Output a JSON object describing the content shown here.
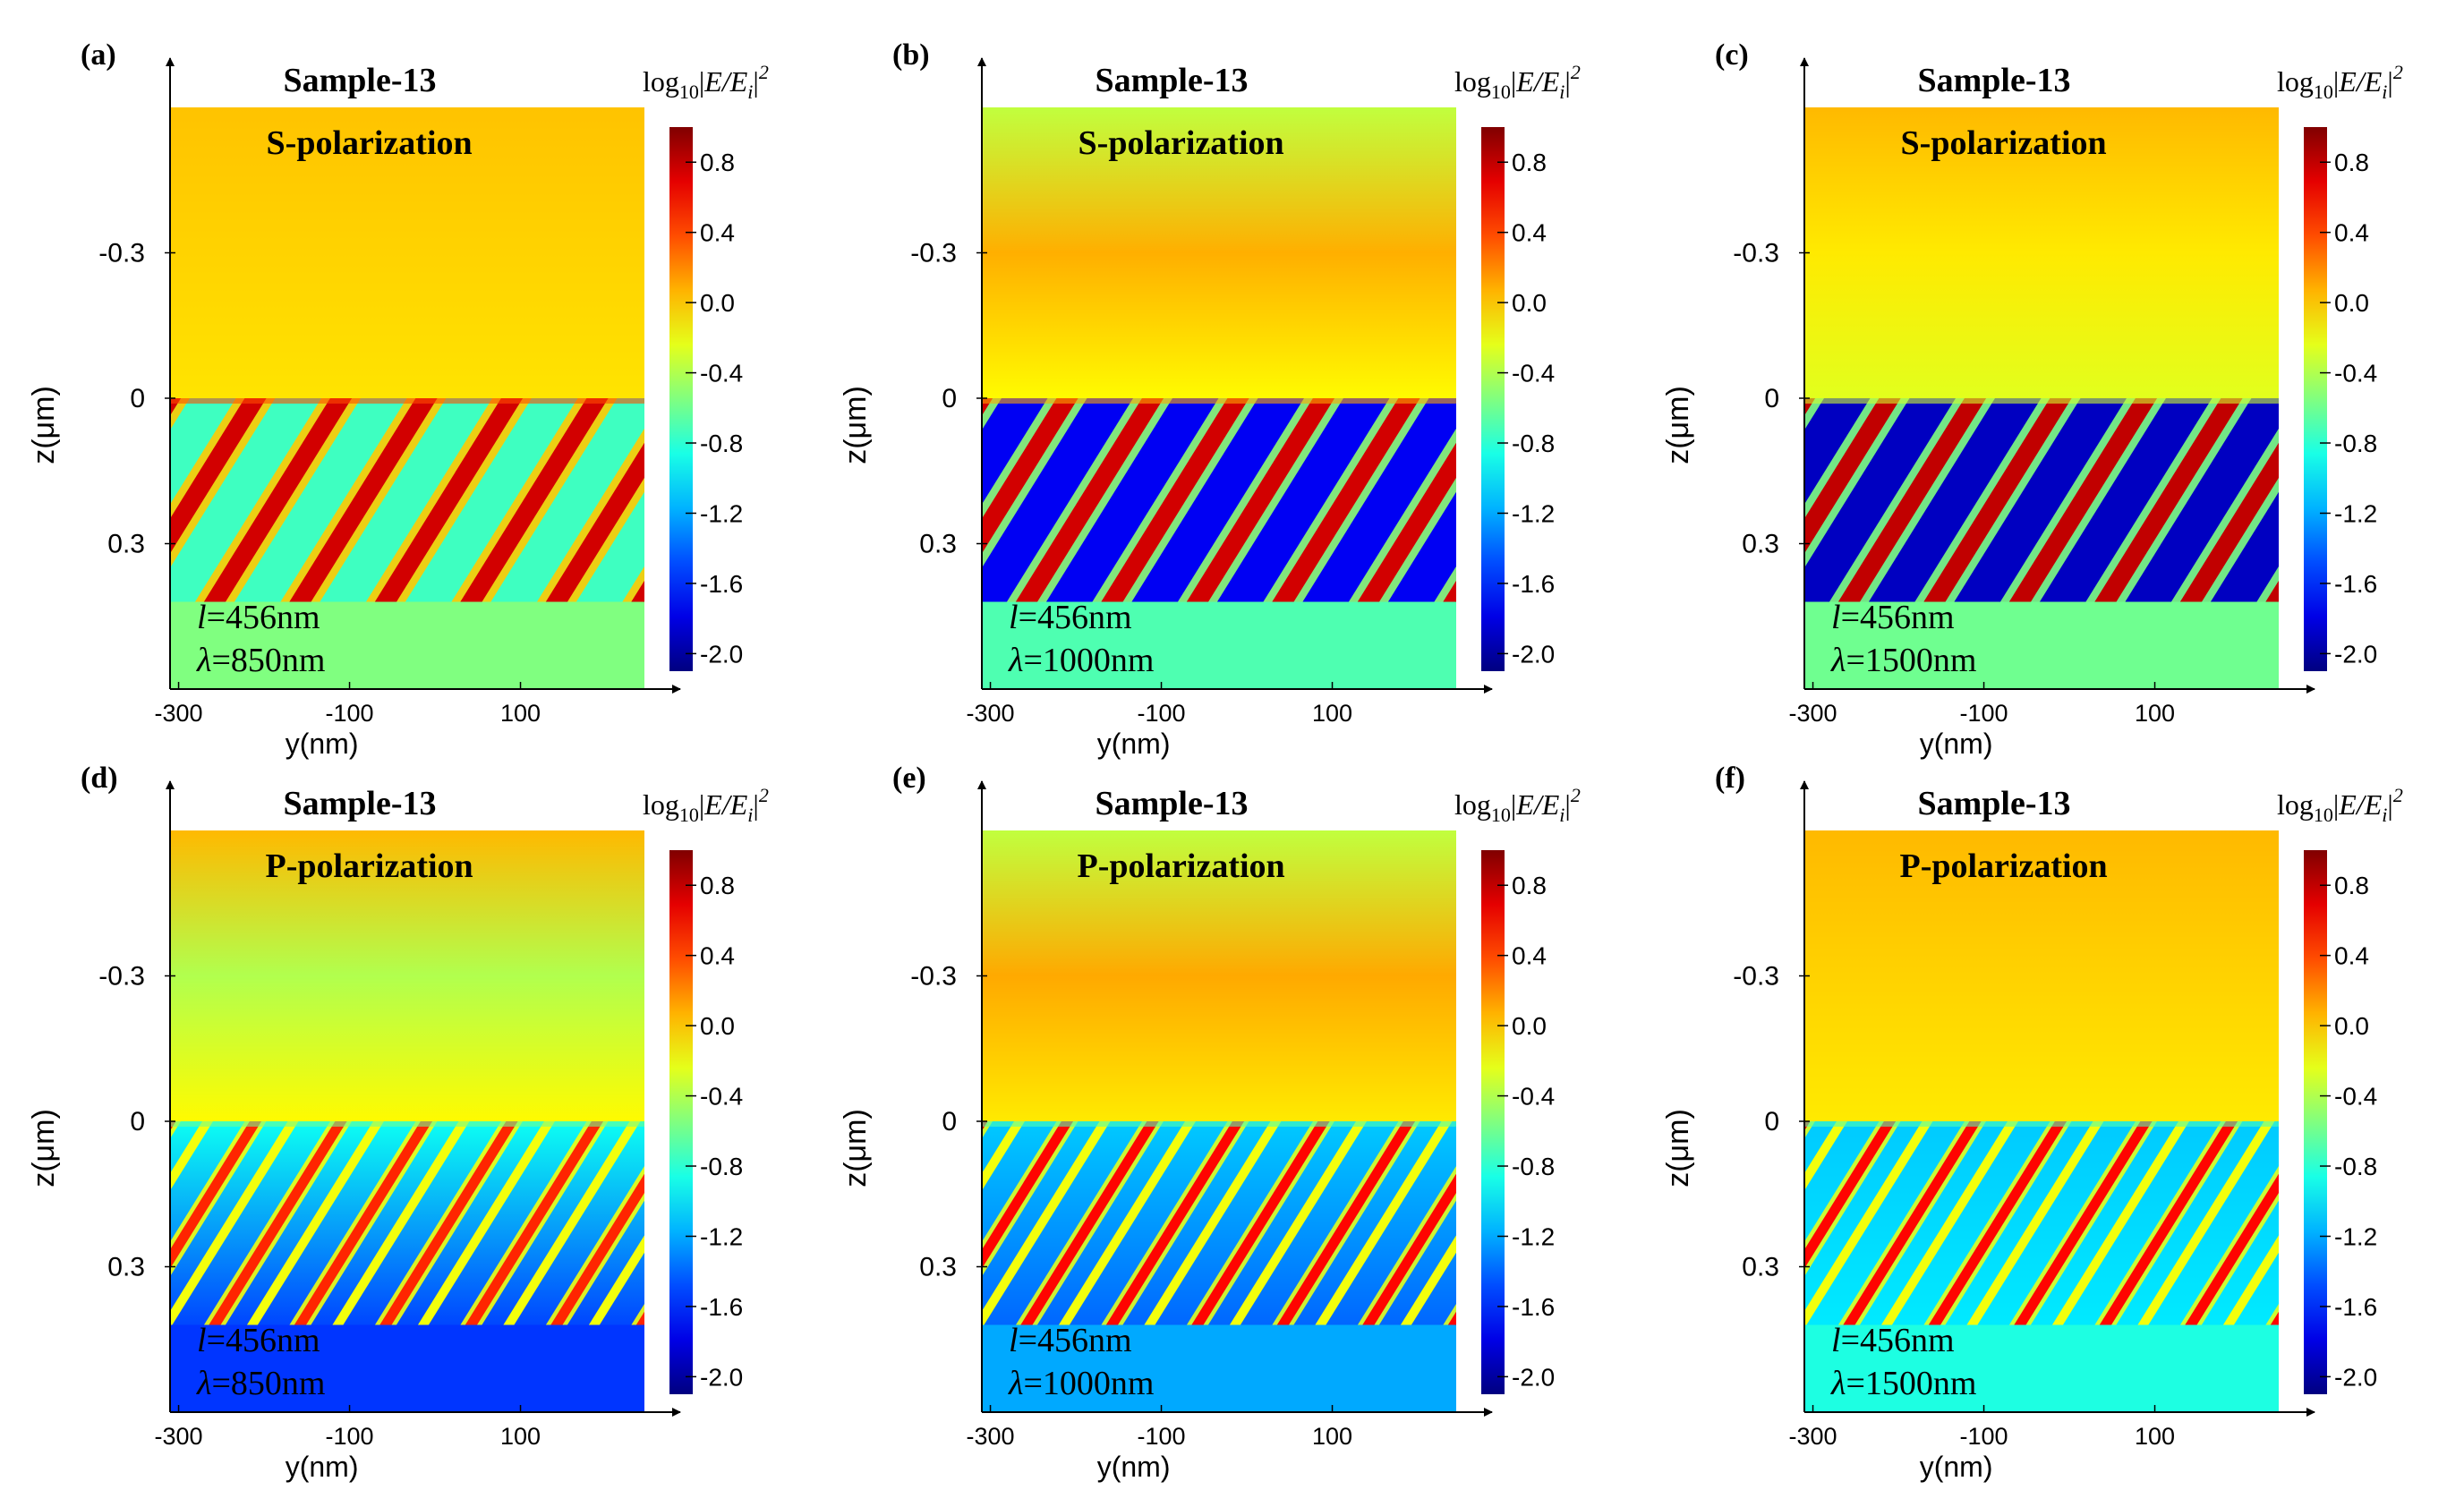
{
  "figure": {
    "z_axis_label": "z(μm)",
    "y_axis_label": "y(nm)",
    "colorbar_title": {
      "prefix": "log",
      "sub10": "10",
      "bar_open": "|",
      "E": "E",
      "slash": "/",
      "Ei": "E",
      "sub_i": "i",
      "bar_close": "|",
      "sup2": "2"
    },
    "colormap": "jet",
    "colors": {
      "axis": "#000000",
      "background": "#ffffff"
    }
  },
  "chart_data": [
    {
      "type": "heatmap",
      "label": "(a)",
      "title": "Sample-13",
      "subtitle": "S-polarization",
      "pol": "S",
      "annot": {
        "l_var": "l",
        "l_val": "=456nm",
        "lam_var": "λ",
        "lam_val": "=850nm"
      },
      "xlabel": "y(nm)",
      "ylabel": "z(μm)",
      "x_ticks": [
        "-300",
        "-100",
        "100"
      ],
      "x_tick_values": [
        -300,
        -100,
        100
      ],
      "xlim": [
        -310,
        245
      ],
      "y_ticks": [
        "-0.3",
        "0",
        "0.3"
      ],
      "y_tick_values": [
        -0.3,
        0,
        0.3
      ],
      "ylim": [
        -0.6,
        0.6
      ],
      "field": {
        "above_top": 0.02,
        "above_bottom": -0.08,
        "grating_top": 0.38,
        "grating_peak": 0.75,
        "grating_bg": -0.75,
        "below": -0.55,
        "period_nm": 100
      },
      "colorbar": {
        "ticks": [
          "0.8",
          "0.4",
          "0.0",
          "-0.4",
          "-0.8",
          "-1.2",
          "-1.6",
          "-2.0"
        ],
        "tick_values": [
          0.8,
          0.4,
          0.0,
          -0.4,
          -0.8,
          -1.2,
          -1.6,
          -2.0
        ],
        "range": [
          -2.1,
          1.0
        ]
      }
    },
    {
      "type": "heatmap",
      "label": "(b)",
      "title": "Sample-13",
      "subtitle": "S-polarization",
      "pol": "S",
      "annot": {
        "l_var": "l",
        "l_val": "=456nm",
        "lam_var": "λ",
        "lam_val": "=1000nm"
      },
      "xlabel": "y(nm)",
      "ylabel": "z(μm)",
      "x_ticks": [
        "-300",
        "-100",
        "100"
      ],
      "x_tick_values": [
        -300,
        -100,
        100
      ],
      "xlim": [
        -310,
        245
      ],
      "y_ticks": [
        "-0.3",
        "0",
        "0.3"
      ],
      "y_tick_values": [
        -0.3,
        0,
        0.3
      ],
      "ylim": [
        -0.6,
        0.6
      ],
      "field": {
        "above_top": -0.35,
        "above_bottom": -0.15,
        "above_mid": 0.08,
        "grating_top": 0.1,
        "grating_peak": 0.75,
        "grating_bg": -1.75,
        "below": -0.7,
        "period_nm": 100
      },
      "colorbar": {
        "ticks": [
          "0.8",
          "0.4",
          "0.0",
          "-0.4",
          "-0.8",
          "-1.2",
          "-1.6",
          "-2.0"
        ],
        "tick_values": [
          0.8,
          0.4,
          0.0,
          -0.4,
          -0.8,
          -1.2,
          -1.6,
          -2.0
        ],
        "range": [
          -2.1,
          1.0
        ]
      }
    },
    {
      "type": "heatmap",
      "label": "(c)",
      "title": "Sample-13",
      "subtitle": "S-polarization",
      "pol": "S",
      "annot": {
        "l_var": "l",
        "l_val": "=456nm",
        "lam_var": "λ",
        "lam_val": "=1500nm"
      },
      "xlabel": "y(nm)",
      "ylabel": "z(μm)",
      "x_ticks": [
        "-300",
        "-100",
        "100"
      ],
      "x_tick_values": [
        -300,
        -100,
        100
      ],
      "xlim": [
        -310,
        245
      ],
      "y_ticks": [
        "-0.3",
        "0",
        "0.3"
      ],
      "y_tick_values": [
        -0.3,
        0,
        0.3
      ],
      "ylim": [
        -0.6,
        0.6
      ],
      "field": {
        "above_top": 0.05,
        "above_bottom": -0.25,
        "grating_top": -0.3,
        "grating_peak": 0.8,
        "grating_bg": -1.9,
        "below": -0.6,
        "period_nm": 100
      },
      "colorbar": {
        "ticks": [
          "0.8",
          "0.4",
          "0.0",
          "-0.4",
          "-0.8",
          "-1.2",
          "-1.6",
          "-2.0"
        ],
        "tick_values": [
          0.8,
          0.4,
          0.0,
          -0.4,
          -0.8,
          -1.2,
          -1.6,
          -2.0
        ],
        "range": [
          -2.1,
          1.0
        ]
      }
    },
    {
      "type": "heatmap",
      "label": "(d)",
      "title": "Sample-13",
      "subtitle": "P-polarization",
      "pol": "P",
      "annot": {
        "l_var": "l",
        "l_val": "=456nm",
        "lam_var": "λ",
        "lam_val": "=850nm"
      },
      "xlabel": "y(nm)",
      "ylabel": "z(μm)",
      "x_ticks": [
        "-300",
        "-100",
        "100"
      ],
      "x_tick_values": [
        -300,
        -100,
        100
      ],
      "xlim": [
        -310,
        245
      ],
      "y_ticks": [
        "-0.3",
        "0",
        "0.3"
      ],
      "y_tick_values": [
        -0.3,
        0,
        0.3
      ],
      "ylim": [
        -0.6,
        0.6
      ],
      "field": {
        "above_top": 0.05,
        "above_bottom": -0.15,
        "above_mid": -0.4,
        "grating_top": -0.6,
        "grating_peak": 0.5,
        "grating_bg": -0.9,
        "grating_bottom_bg": -1.5,
        "below": -1.55,
        "period_nm": 100
      },
      "colorbar": {
        "ticks": [
          "0.8",
          "0.4",
          "0.0",
          "-0.4",
          "-0.8",
          "-1.2",
          "-1.6",
          "-2.0"
        ],
        "tick_values": [
          0.8,
          0.4,
          0.0,
          -0.4,
          -0.8,
          -1.2,
          -1.6,
          -2.0
        ],
        "range": [
          -2.1,
          1.0
        ]
      }
    },
    {
      "type": "heatmap",
      "label": "(e)",
      "title": "Sample-13",
      "subtitle": "P-polarization",
      "pol": "P",
      "annot": {
        "l_var": "l",
        "l_val": "=456nm",
        "lam_var": "λ",
        "lam_val": "=1000nm"
      },
      "xlabel": "y(nm)",
      "ylabel": "z(μm)",
      "x_ticks": [
        "-300",
        "-100",
        "100"
      ],
      "x_tick_values": [
        -300,
        -100,
        100
      ],
      "xlim": [
        -310,
        245
      ],
      "y_ticks": [
        "-0.3",
        "0",
        "0.3"
      ],
      "y_tick_values": [
        -0.3,
        0,
        0.3
      ],
      "ylim": [
        -0.6,
        0.6
      ],
      "field": {
        "above_top": -0.35,
        "above_bottom": -0.1,
        "above_mid": 0.1,
        "grating_top": -0.7,
        "grating_peak": 0.6,
        "grating_bg": -1.1,
        "grating_bottom_bg": -1.4,
        "below": -1.2,
        "period_nm": 100
      },
      "colorbar": {
        "ticks": [
          "0.8",
          "0.4",
          "0.0",
          "-0.4",
          "-0.8",
          "-1.2",
          "-1.6",
          "-2.0"
        ],
        "tick_values": [
          0.8,
          0.4,
          0.0,
          -0.4,
          -0.8,
          -1.2,
          -1.6,
          -2.0
        ],
        "range": [
          -2.1,
          1.0
        ]
      }
    },
    {
      "type": "heatmap",
      "label": "(f)",
      "title": "Sample-13",
      "subtitle": "P-polarization",
      "pol": "P",
      "annot": {
        "l_var": "l",
        "l_val": "=456nm",
        "lam_var": "λ",
        "lam_val": "=1500nm"
      },
      "xlabel": "y(nm)",
      "ylabel": "z(μm)",
      "x_ticks": [
        "-300",
        "-100",
        "100"
      ],
      "x_tick_values": [
        -300,
        -100,
        100
      ],
      "xlim": [
        -310,
        245
      ],
      "y_ticks": [
        "-0.3",
        "0",
        "0.3"
      ],
      "y_tick_values": [
        -0.3,
        0,
        0.3
      ],
      "ylim": [
        -0.6,
        0.6
      ],
      "field": {
        "above_top": 0.05,
        "above_bottom": -0.1,
        "grating_top": -0.7,
        "grating_peak": 0.6,
        "grating_bg": -1.1,
        "grating_bottom_bg": -1.0,
        "below": -0.85,
        "period_nm": 100
      },
      "colorbar": {
        "ticks": [
          "0.8",
          "0.4",
          "0.0",
          "-0.4",
          "-0.8",
          "-1.2",
          "-1.6",
          "-2.0"
        ],
        "tick_values": [
          0.8,
          0.4,
          0.0,
          -0.4,
          -0.8,
          -1.2,
          -1.6,
          -2.0
        ],
        "range": [
          -2.1,
          1.0
        ]
      }
    }
  ]
}
